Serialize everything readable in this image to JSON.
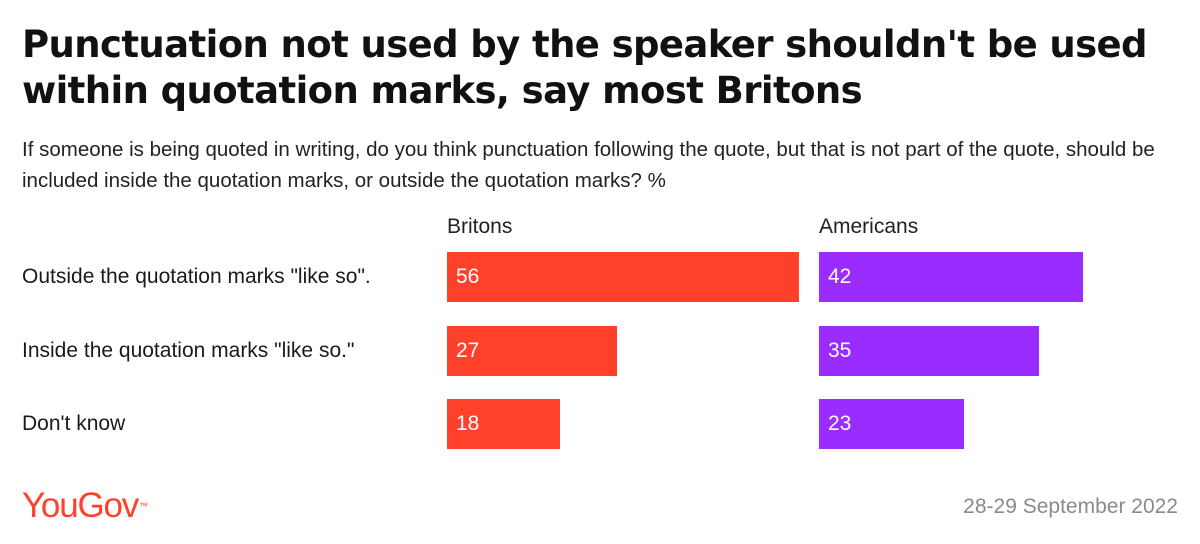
{
  "title": "Punctuation not used by the speaker shouldn't be used within quotation marks, say most Britons",
  "subtitle": "If someone is being quoted in writing, do you think punctuation following the quote, but that is not part of the quote, should be included inside the quotation marks, or outside the quotation marks? %",
  "footer": {
    "brand": "YouGov",
    "date": "28-29 September 2022"
  },
  "colors": {
    "Britons": "#ff412c",
    "Americans": "#9b2cff"
  },
  "chart_data": {
    "type": "bar",
    "orientation": "horizontal",
    "unit": "%",
    "categories": [
      "Outside the quotation marks \"like so\".",
      "Inside the quotation marks \"like so.\"",
      "Don't know"
    ],
    "series": [
      {
        "name": "Britons",
        "values": [
          56,
          27,
          18
        ]
      },
      {
        "name": "Americans",
        "values": [
          42,
          35,
          23
        ]
      }
    ],
    "xlim": [
      0,
      56
    ],
    "grid": false,
    "legend": "panel headers"
  }
}
